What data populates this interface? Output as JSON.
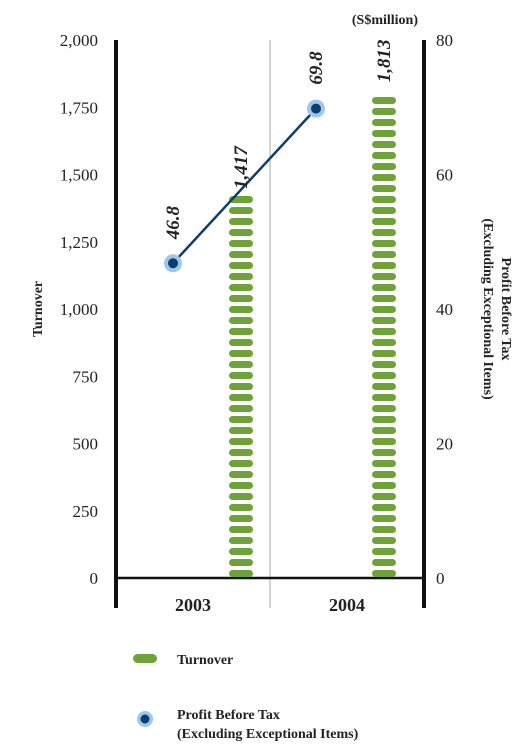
{
  "chart_data": {
    "type": "bar",
    "unit": "(S$million)",
    "categories": [
      "2003",
      "2004"
    ],
    "left_axis": {
      "label": "Turnover",
      "ylim": [
        0,
        2000
      ],
      "ticks": [
        "0",
        "250",
        "500",
        "750",
        "1,000",
        "1,250",
        "1,500",
        "1,750",
        "2,000"
      ],
      "tick_values": [
        0,
        250,
        500,
        750,
        1000,
        1250,
        1500,
        1750,
        2000
      ]
    },
    "right_axis": {
      "label_line1": "Profit Before Tax",
      "label_line2": "(Excluding Exceptional Items)",
      "ylim": [
        0,
        80
      ],
      "ticks": [
        "0",
        "20",
        "40",
        "60",
        "80"
      ],
      "tick_values": [
        0,
        20,
        40,
        60,
        80
      ]
    },
    "series": [
      {
        "name": "Turnover",
        "type": "bar",
        "axis": "left",
        "values": [
          1417,
          1813
        ],
        "labels": [
          "1,417",
          "1,813"
        ],
        "color": "#6fa33a"
      },
      {
        "name": "Profit Before Tax (Excluding Exceptional Items)",
        "type": "line",
        "axis": "right",
        "values": [
          46.8,
          69.8
        ],
        "labels": [
          "46.8",
          "69.8"
        ],
        "color": "#0d3c6e",
        "marker_halo": "#9cc8ea"
      }
    ],
    "legend": {
      "placement": "bottom",
      "items": [
        {
          "label": "Turnover",
          "kind": "bar"
        },
        {
          "label_line1": "Profit Before Tax",
          "label_line2": "(Excluding Exceptional Items)",
          "kind": "marker"
        }
      ]
    },
    "grid": false
  }
}
